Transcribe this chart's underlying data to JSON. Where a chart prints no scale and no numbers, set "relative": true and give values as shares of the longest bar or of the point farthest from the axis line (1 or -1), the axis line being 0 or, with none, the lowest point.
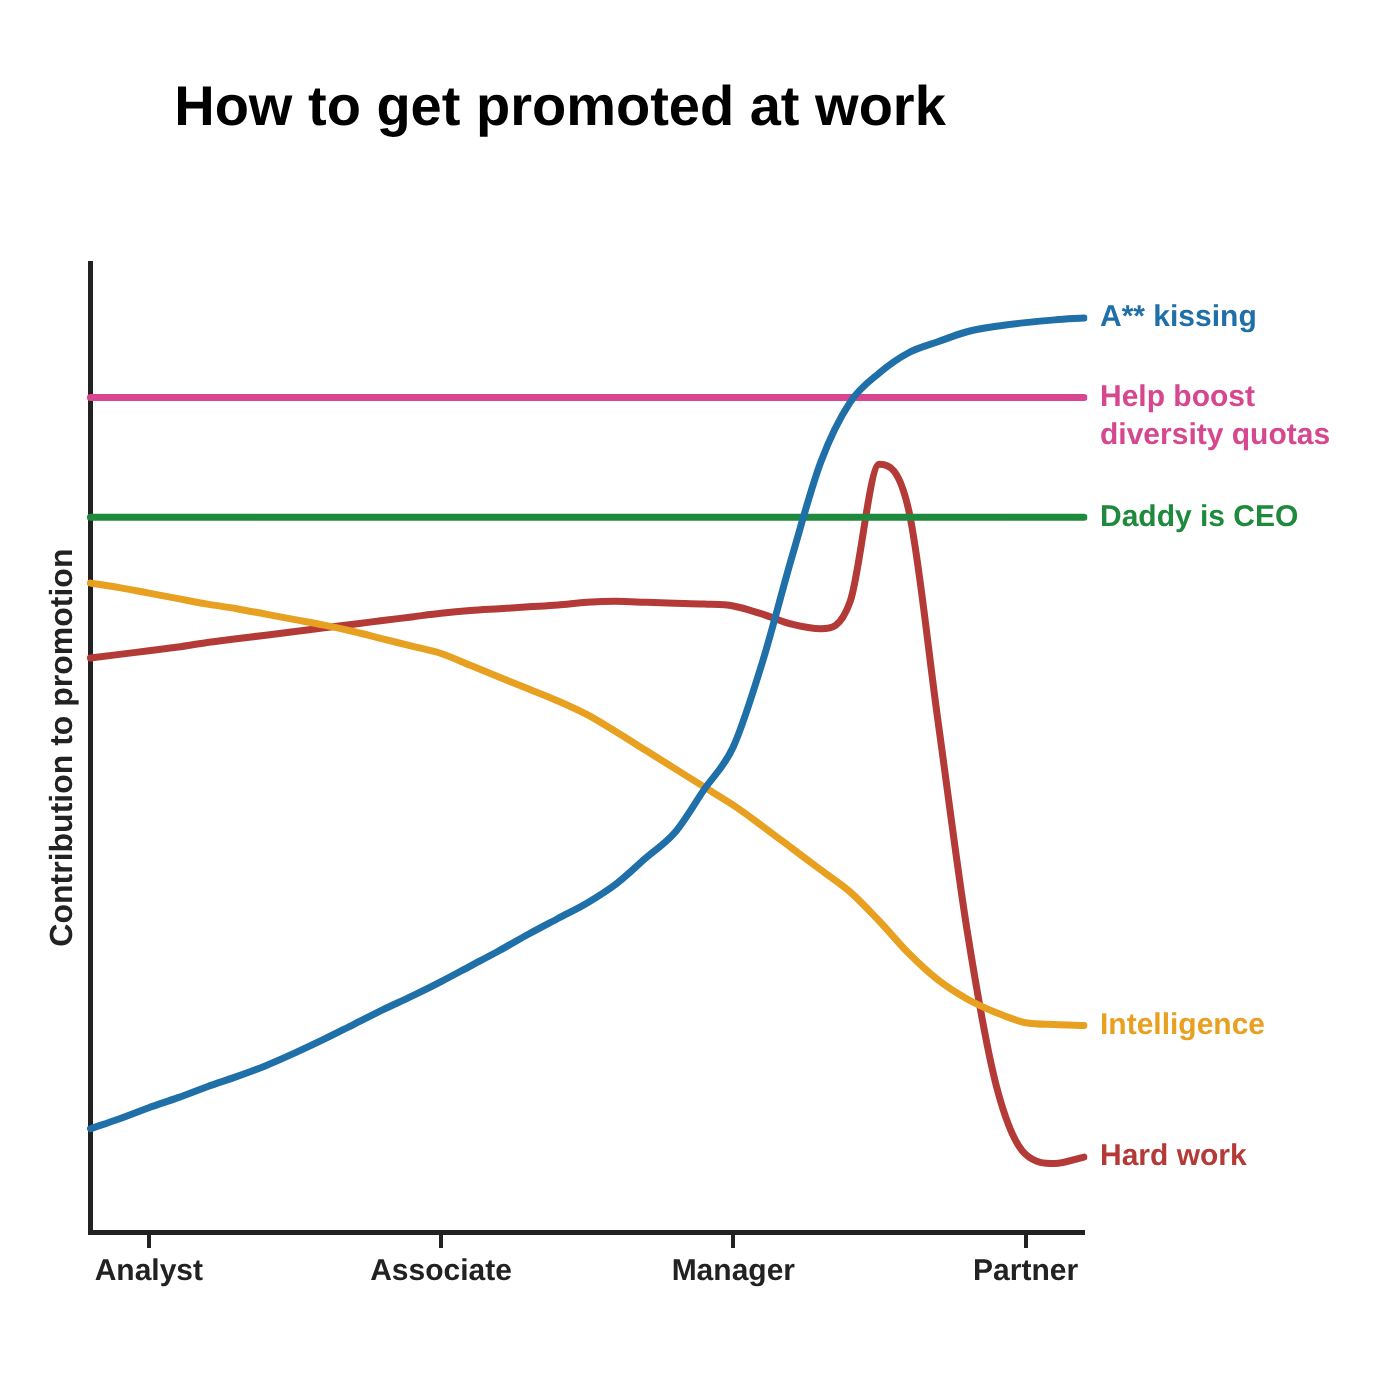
{
  "chart_data": {
    "type": "line",
    "title": "How to get promoted at work",
    "ylabel": "Contribution to promotion",
    "relative": true,
    "legend": false,
    "grid": false,
    "marker": "none",
    "line_style": "solid",
    "categories": [
      null,
      null,
      "Analyst",
      null,
      null,
      null,
      null,
      null,
      null,
      null,
      null,
      null,
      "Associate",
      null,
      null,
      null,
      null,
      null,
      null,
      null,
      null,
      null,
      "Manager",
      null,
      null,
      null,
      null,
      null,
      null,
      null,
      null,
      null,
      "Partner",
      null,
      null
    ],
    "series": [
      {
        "name": "A** kissing",
        "color": "#1f6fa8",
        "values": [
          0.113,
          0.124,
          0.136,
          0.147,
          0.159,
          0.17,
          0.182,
          0.196,
          0.211,
          0.227,
          0.243,
          0.258,
          0.274,
          0.291,
          0.308,
          0.326,
          0.343,
          0.36,
          0.381,
          0.409,
          0.437,
          0.484,
          0.531,
          0.624,
          0.738,
          0.843,
          0.908,
          0.94,
          0.962,
          0.974,
          0.985,
          0.991,
          0.995,
          0.998,
          1
        ]
      },
      {
        "name": "Help boost diversity quotas",
        "color": "#d6478f",
        "values": [
          0.913,
          0.913,
          0.913,
          0.913,
          0.913,
          0.913,
          0.913,
          0.913,
          0.913,
          0.913,
          0.913,
          0.913,
          0.913,
          0.913,
          0.913,
          0.913,
          0.913,
          0.913,
          0.913,
          0.913,
          0.913,
          0.913,
          0.913,
          0.913,
          0.913,
          0.913,
          0.913,
          0.913,
          0.913,
          0.913,
          0.913,
          0.913,
          0.913,
          0.913,
          0.913
        ]
      },
      {
        "name": "Daddy is CEO",
        "color": "#1f8a3c",
        "values": [
          0.782,
          0.782,
          0.782,
          0.782,
          0.782,
          0.782,
          0.782,
          0.782,
          0.782,
          0.782,
          0.782,
          0.782,
          0.782,
          0.782,
          0.782,
          0.782,
          0.782,
          0.782,
          0.782,
          0.782,
          0.782,
          0.782,
          0.782,
          0.782,
          0.782,
          0.782,
          0.782,
          0.782,
          0.782,
          0.782,
          0.782,
          0.782,
          0.782,
          0.782,
          0.782
        ]
      },
      {
        "name": "Intelligence",
        "color": "#e8a020",
        "values": [
          0.71,
          0.705,
          0.699,
          0.693,
          0.687,
          0.682,
          0.676,
          0.67,
          0.664,
          0.657,
          0.649,
          0.641,
          0.633,
          0.62,
          0.607,
          0.594,
          0.581,
          0.566,
          0.547,
          0.527,
          0.507,
          0.487,
          0.467,
          0.444,
          0.42,
          0.396,
          0.372,
          0.34,
          0.305,
          0.276,
          0.255,
          0.24,
          0.229,
          0.227,
          0.226
        ]
      },
      {
        "name": "Hard work",
        "color": "#b33a36",
        "values": [
          0.628,
          0.632,
          0.636,
          0.64,
          0.645,
          0.649,
          0.653,
          0.657,
          0.661,
          0.665,
          0.669,
          0.673,
          0.677,
          0.68,
          0.682,
          0.684,
          0.686,
          0.689,
          0.69,
          0.689,
          0.688,
          0.687,
          0.685,
          0.676,
          0.665,
          0.66,
          0.69,
          0.84,
          0.79,
          0.56,
          0.33,
          0.16,
          0.085,
          0.075,
          0.082
        ]
      }
    ]
  }
}
